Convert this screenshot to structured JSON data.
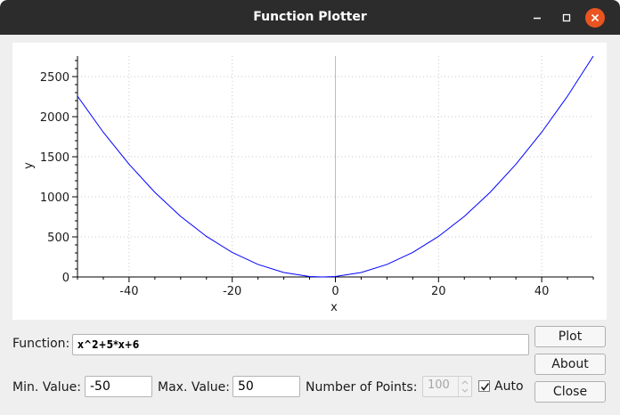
{
  "window": {
    "title": "Function Plotter"
  },
  "controls": {
    "function_label": "Function:",
    "function_value": "x^2+5*x+6",
    "min_label": "Min. Value:",
    "min_value": "-50",
    "max_label": "Max. Value:",
    "max_value": "50",
    "points_label": "Number of Points:",
    "points_value": "100",
    "auto_label": "Auto",
    "auto_checked": true
  },
  "buttons": {
    "plot": "Plot",
    "about": "About",
    "close": "Close"
  },
  "colors": {
    "titlebar": "#2c2c2c",
    "close_button": "#e95420",
    "curve": "#0000ff"
  },
  "chart_data": {
    "type": "line",
    "xlabel": "x",
    "ylabel": "y",
    "xlim": [
      -50,
      50
    ],
    "ylim": [
      0,
      2756
    ],
    "x_ticks": [
      "-40",
      "-20",
      "0",
      "20",
      "40"
    ],
    "y_ticks": [
      "0",
      "500",
      "1000",
      "1500",
      "2000",
      "2500"
    ],
    "grid": true,
    "series": [
      {
        "x": [
          -50,
          -45,
          -40,
          -35,
          -30,
          -25,
          -20,
          -15,
          -10,
          -5,
          -2.5,
          0,
          5,
          10,
          15,
          20,
          25,
          30,
          35,
          40,
          45,
          50
        ],
        "y": [
          2256,
          1806,
          1406,
          1056,
          756,
          506,
          306,
          156,
          56,
          6,
          0,
          6,
          56,
          156,
          306,
          506,
          756,
          1056,
          1406,
          1806,
          2256,
          2756
        ]
      }
    ]
  }
}
